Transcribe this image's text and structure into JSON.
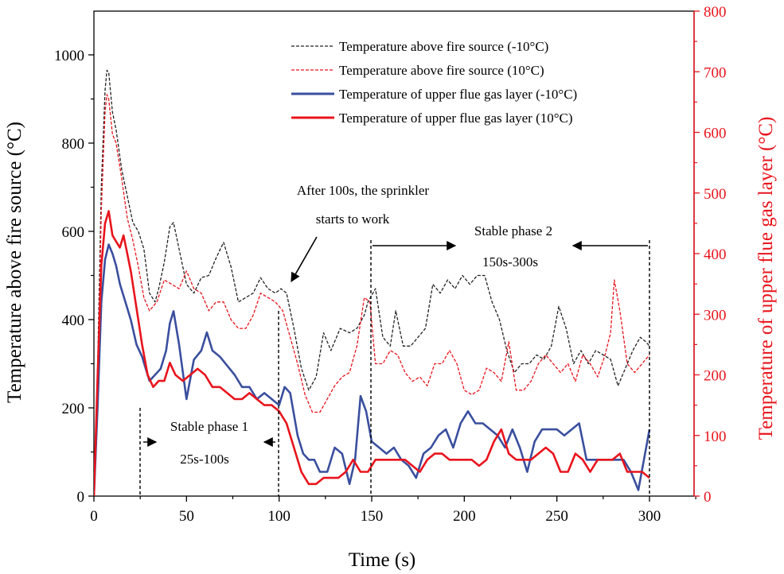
{
  "chart_data": {
    "type": "line",
    "xlabel": "Time (s)",
    "ylabel": "Temperature above fire source (°C)",
    "y2label": "Temperature of upper flue gas layer (°C)",
    "xlim": [
      0,
      330
    ],
    "ylim": [
      0,
      1100
    ],
    "y2lim": [
      0,
      800
    ],
    "xticks": [
      0,
      50,
      100,
      150,
      200,
      250,
      300
    ],
    "yticks": [
      0,
      200,
      400,
      600,
      800,
      1000
    ],
    "y2ticks": [
      0,
      100,
      200,
      300,
      400,
      500,
      600,
      700,
      800
    ],
    "legend_position": "top-right",
    "colors": {
      "left_axis": "#000000",
      "right_axis": "#e8141c",
      "blue": "#3a4f9e",
      "red": "#e8141c"
    },
    "series": [
      {
        "name": "Temperature above fire source (-10°C)",
        "axis": "left",
        "style": "dashed",
        "color": "#222222",
        "x": [
          0,
          2,
          4,
          6,
          7,
          8,
          10,
          12,
          15,
          18,
          21,
          24,
          27,
          30,
          33,
          35,
          38,
          41,
          43,
          46,
          50,
          54,
          58,
          62,
          66,
          70,
          74,
          78,
          82,
          86,
          90,
          94,
          98,
          101,
          104,
          108,
          112,
          116,
          120,
          124,
          128,
          133,
          138,
          142,
          146,
          148,
          152,
          156,
          160,
          163,
          167,
          171,
          175,
          179,
          183,
          187,
          191,
          195,
          199,
          203,
          207,
          211,
          215,
          219,
          223,
          227,
          231,
          235,
          239,
          243,
          247,
          251,
          255,
          259,
          263,
          267,
          271,
          275,
          279,
          283,
          287,
          291,
          295,
          298,
          300
        ],
        "y": [
          0,
          300,
          700,
          920,
          965,
          960,
          870,
          830,
          740,
          680,
          620,
          600,
          560,
          460,
          440,
          470,
          530,
          610,
          620,
          560,
          480,
          460,
          495,
          500,
          540,
          575,
          520,
          440,
          450,
          460,
          495,
          470,
          460,
          470,
          460,
          380,
          290,
          240,
          270,
          370,
          330,
          380,
          370,
          380,
          410,
          440,
          470,
          360,
          340,
          420,
          340,
          340,
          360,
          380,
          480,
          460,
          490,
          470,
          500,
          480,
          500,
          500,
          440,
          400,
          330,
          280,
          300,
          300,
          320,
          310,
          340,
          430,
          380,
          300,
          330,
          300,
          330,
          320,
          310,
          250,
          290,
          330,
          360,
          350,
          340
        ]
      },
      {
        "name": "Temperature above fire source (10°C)",
        "axis": "left",
        "style": "dashed",
        "color": "#e8141c",
        "x": [
          0,
          2,
          4,
          6,
          7,
          8,
          10,
          12,
          15,
          18,
          21,
          24,
          27,
          30,
          34,
          38,
          42,
          46,
          50,
          54,
          58,
          62,
          66,
          70,
          74,
          78,
          82,
          86,
          90,
          94,
          98,
          102,
          106,
          110,
          114,
          118,
          122,
          126,
          130,
          134,
          138,
          142,
          146,
          149,
          152,
          156,
          160,
          164,
          168,
          172,
          176,
          180,
          184,
          188,
          192,
          196,
          200,
          204,
          208,
          212,
          216,
          220,
          224,
          228,
          232,
          236,
          240,
          244,
          248,
          252,
          256,
          260,
          264,
          268,
          272,
          276,
          279,
          281,
          284,
          288,
          292,
          296,
          300
        ],
        "y": [
          0,
          250,
          650,
          870,
          910,
          900,
          820,
          800,
          720,
          630,
          580,
          520,
          450,
          420,
          440,
          490,
          480,
          470,
          510,
          470,
          460,
          420,
          440,
          440,
          400,
          380,
          380,
          410,
          460,
          450,
          440,
          420,
          360,
          300,
          230,
          190,
          190,
          220,
          250,
          270,
          280,
          340,
          450,
          440,
          300,
          300,
          330,
          320,
          280,
          260,
          270,
          250,
          300,
          300,
          330,
          300,
          240,
          230,
          240,
          290,
          280,
          260,
          350,
          240,
          240,
          260,
          300,
          320,
          300,
          280,
          300,
          260,
          320,
          300,
          270,
          320,
          370,
          490,
          420,
          300,
          280,
          300,
          320
        ]
      },
      {
        "name": "Temperature of upper flue gas layer (-10°C)",
        "axis": "right",
        "style": "solid",
        "color": "#3a4f9e",
        "x": [
          0,
          2,
          4,
          6,
          8,
          10,
          12,
          14,
          17,
          20,
          23,
          26,
          30,
          33,
          36,
          39,
          41,
          43,
          46,
          50,
          54,
          58,
          61,
          64,
          68,
          72,
          76,
          80,
          84,
          88,
          92,
          96,
          100,
          103,
          106,
          110,
          113,
          116,
          119,
          122,
          126,
          130,
          134,
          138,
          141,
          144,
          147,
          150,
          154,
          158,
          162,
          166,
          170,
          174,
          178,
          182,
          186,
          190,
          194,
          198,
          202,
          206,
          210,
          214,
          218,
          222,
          226,
          230,
          234,
          238,
          242,
          246,
          250,
          254,
          258,
          262,
          266,
          270,
          274,
          278,
          282,
          286,
          290,
          294,
          297,
          300
        ],
        "y": [
          0,
          150,
          320,
          390,
          415,
          400,
          380,
          350,
          320,
          290,
          250,
          230,
          190,
          200,
          210,
          240,
          285,
          305,
          250,
          160,
          225,
          240,
          270,
          240,
          230,
          215,
          200,
          180,
          180,
          160,
          170,
          160,
          150,
          180,
          170,
          100,
          70,
          60,
          60,
          40,
          40,
          80,
          70,
          20,
          60,
          165,
          140,
          90,
          80,
          70,
          80,
          60,
          50,
          30,
          70,
          80,
          100,
          110,
          80,
          120,
          140,
          120,
          120,
          110,
          100,
          80,
          110,
          80,
          40,
          90,
          110,
          110,
          110,
          100,
          110,
          120,
          60,
          60,
          60,
          60,
          60,
          60,
          40,
          10,
          60,
          110
        ]
      },
      {
        "name": "Temperature of upper flue gas layer (10°C)",
        "axis": "right",
        "style": "solid",
        "color": "#e8141c",
        "x": [
          0,
          2,
          4,
          6,
          8,
          10,
          12,
          14,
          16,
          18,
          20,
          23,
          26,
          29,
          32,
          35,
          38,
          41,
          44,
          48,
          52,
          56,
          60,
          64,
          68,
          72,
          76,
          80,
          84,
          88,
          92,
          96,
          100,
          104,
          108,
          112,
          116,
          120,
          124,
          128,
          132,
          136,
          140,
          144,
          148,
          152,
          156,
          160,
          164,
          168,
          172,
          176,
          180,
          184,
          188,
          192,
          196,
          200,
          204,
          208,
          212,
          216,
          220,
          224,
          228,
          232,
          236,
          240,
          244,
          248,
          252,
          256,
          260,
          264,
          268,
          272,
          276,
          280,
          284,
          288,
          292,
          296,
          300
        ],
        "y": [
          0,
          200,
          380,
          450,
          470,
          430,
          420,
          410,
          430,
          400,
          370,
          310,
          250,
          200,
          180,
          190,
          190,
          220,
          200,
          190,
          200,
          210,
          200,
          180,
          180,
          170,
          160,
          160,
          170,
          160,
          150,
          150,
          140,
          120,
          80,
          40,
          20,
          20,
          30,
          30,
          30,
          40,
          60,
          40,
          40,
          60,
          60,
          60,
          60,
          60,
          50,
          40,
          60,
          70,
          70,
          60,
          60,
          60,
          60,
          50,
          60,
          90,
          110,
          70,
          60,
          60,
          60,
          70,
          80,
          70,
          40,
          40,
          70,
          60,
          40,
          60,
          60,
          60,
          70,
          40,
          40,
          40,
          30
        ]
      }
    ],
    "annotations": {
      "sprinkler": [
        "After 100s, the sprinkler",
        "starts to work"
      ],
      "phase1": [
        "Stable phase 1",
        "25s-100s"
      ],
      "phase2": [
        "Stable phase 2",
        "150s-300s"
      ]
    }
  }
}
